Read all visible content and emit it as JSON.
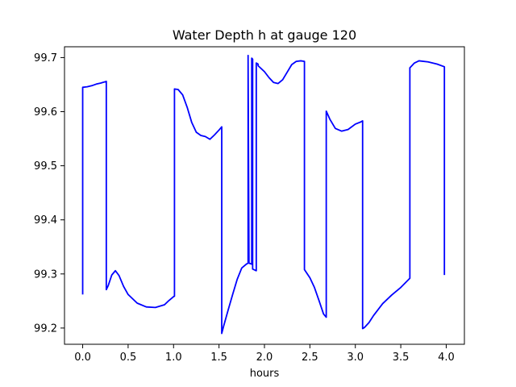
{
  "chart_data": {
    "type": "line",
    "title": "Water Depth h at gauge 120",
    "xlabel": "hours",
    "ylabel": "",
    "xlim": [
      -0.2,
      4.2
    ],
    "ylim": [
      99.17,
      99.72
    ],
    "x_ticks": [
      0.0,
      0.5,
      1.0,
      1.5,
      2.0,
      2.5,
      3.0,
      3.5,
      4.0
    ],
    "x_tick_labels": [
      "0.0",
      "0.5",
      "1.0",
      "1.5",
      "2.0",
      "2.5",
      "3.0",
      "3.5",
      "4.0"
    ],
    "y_ticks": [
      99.2,
      99.3,
      99.4,
      99.5,
      99.6,
      99.7
    ],
    "y_tick_labels": [
      "99.2",
      "99.3",
      "99.4",
      "99.5",
      "99.6",
      "99.7"
    ],
    "grid": false,
    "legend": "none",
    "series": [
      {
        "color": "#0000ff",
        "x": [
          0.0,
          0.0,
          0.05,
          0.1,
          0.15,
          0.2,
          0.26,
          0.26,
          0.28,
          0.32,
          0.36,
          0.4,
          0.45,
          0.5,
          0.6,
          0.7,
          0.8,
          0.9,
          0.95,
          1.0,
          1.01,
          1.01,
          1.05,
          1.1,
          1.15,
          1.2,
          1.25,
          1.3,
          1.35,
          1.4,
          1.45,
          1.5,
          1.53,
          1.53,
          1.55,
          1.6,
          1.65,
          1.7,
          1.75,
          1.8,
          1.82,
          1.82,
          1.83,
          1.83,
          1.86,
          1.86,
          1.87,
          1.87,
          1.91,
          1.91,
          1.93,
          1.93,
          2.0,
          2.05,
          2.1,
          2.15,
          2.2,
          2.25,
          2.3,
          2.35,
          2.4,
          2.44,
          2.44,
          2.5,
          2.55,
          2.6,
          2.65,
          2.68,
          2.68,
          2.72,
          2.78,
          2.85,
          2.92,
          3.0,
          3.06,
          3.08,
          3.08,
          3.1,
          3.15,
          3.2,
          3.3,
          3.4,
          3.5,
          3.6,
          3.6,
          3.65,
          3.7,
          3.8,
          3.9,
          3.98,
          3.98
        ],
        "y": [
          99.262,
          99.645,
          99.646,
          99.648,
          99.651,
          99.653,
          99.656,
          99.271,
          99.278,
          99.298,
          99.306,
          99.297,
          99.277,
          99.262,
          99.246,
          99.239,
          99.238,
          99.243,
          99.251,
          99.258,
          99.259,
          99.642,
          99.641,
          99.631,
          99.608,
          99.58,
          99.562,
          99.556,
          99.554,
          99.549,
          99.557,
          99.566,
          99.572,
          99.19,
          99.203,
          99.233,
          99.262,
          99.29,
          99.311,
          99.318,
          99.32,
          99.704,
          99.322,
          99.32,
          99.318,
          99.699,
          99.697,
          99.309,
          99.306,
          99.69,
          99.688,
          99.685,
          99.674,
          99.663,
          99.654,
          99.652,
          99.659,
          99.673,
          99.687,
          99.693,
          99.694,
          99.693,
          99.308,
          99.293,
          99.275,
          99.251,
          99.226,
          99.22,
          99.601,
          99.586,
          99.569,
          99.564,
          99.567,
          99.577,
          99.581,
          99.583,
          99.199,
          99.201,
          99.21,
          99.223,
          99.245,
          99.261,
          99.275,
          99.292,
          99.681,
          99.69,
          99.694,
          99.692,
          99.688,
          99.683,
          99.298
        ]
      }
    ]
  }
}
